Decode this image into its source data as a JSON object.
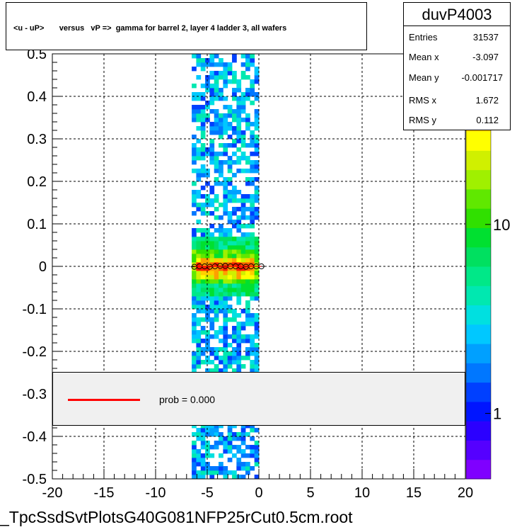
{
  "chart_data": {
    "type": "heatmap",
    "title": "<u - uP>       versus   vP =>  gamma for barrel 2, layer 4 ladder 3, all wafers",
    "xlim": [
      -20,
      20
    ],
    "ylim": [
      -0.5,
      0.5
    ],
    "x_ticks": [
      "-20",
      "-15",
      "-10",
      "-5",
      "0",
      "5",
      "10",
      "15",
      "20"
    ],
    "y_ticks": [
      "-0.5",
      "-0.4",
      "-0.3",
      "-0.2",
      "-0.1",
      "0",
      "0.1",
      "0.2",
      "0.3",
      "0.4",
      "0.5"
    ],
    "grid": true,
    "z_scale": "log",
    "z_ticks": [
      "1",
      "10"
    ],
    "occupied_x_range": [
      -6.5,
      0
    ],
    "core_y_range": [
      -0.03,
      0.03
    ],
    "profile_points": {
      "x": [
        -6.25,
        -5.75,
        -5.25,
        -4.75,
        -4.25,
        -3.75,
        -3.25,
        -2.75,
        -2.25,
        -1.75,
        -1.25,
        -0.75,
        -0.25,
        0.25
      ],
      "y": [
        -0.001,
        0.0,
        0.0,
        -0.001,
        0.0,
        0.001,
        0.001,
        0.0,
        0.0,
        0.0,
        -0.001,
        0.0,
        0.0,
        0.0
      ]
    },
    "stats": {
      "name": "duvP4003",
      "rows": [
        {
          "label": "Entries",
          "value": "31537"
        },
        {
          "label": "Mean x",
          "value": "-3.097"
        },
        {
          "label": "Mean y",
          "value": "-0.001717"
        },
        {
          "label": "RMS x",
          "value": "1.672"
        },
        {
          "label": "RMS y",
          "value": "0.112"
        }
      ]
    },
    "fit_legend": "prob = 0.000",
    "colors": {
      "fit_line": "#ff0000",
      "profile_marker": "#ff0000",
      "palette": [
        "#7f00ff",
        "#5500ff",
        "#2b00ff",
        "#0015ff",
        "#0040ff",
        "#0077ff",
        "#00a0ff",
        "#00c8ff",
        "#00e0e0",
        "#00e8b0",
        "#00e888",
        "#00e060",
        "#00e030",
        "#30e000",
        "#60e800",
        "#a0f000",
        "#d0f000",
        "#ffff00",
        "#ffd000",
        "#ffa000",
        "#ff6000",
        "#ff2000"
      ]
    }
  },
  "footer": "_TpcSsdSvtPlotsG40G081NFP25rCut0.5cm.root"
}
